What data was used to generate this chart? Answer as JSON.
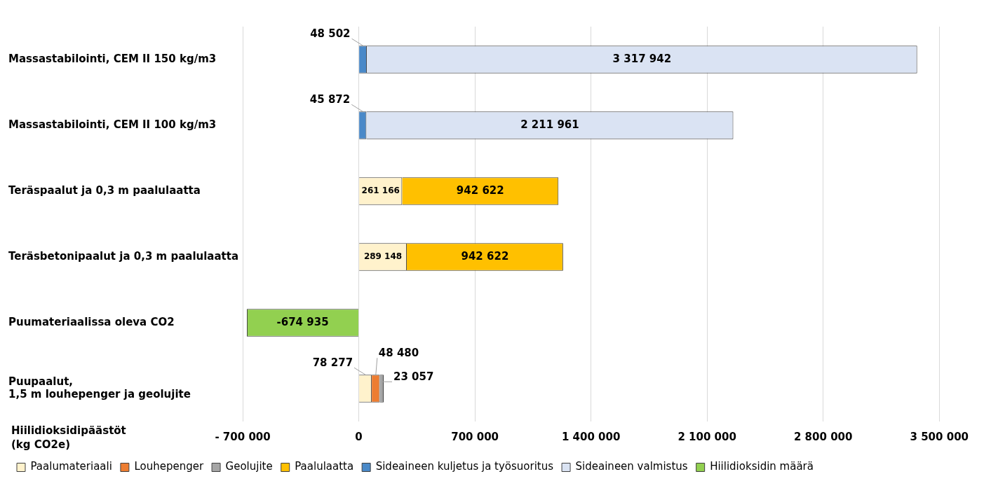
{
  "chart_data": {
    "type": "bar",
    "orientation": "horizontal",
    "stacked": true,
    "categories": [
      "Massastabilointi, CEM II 150 kg/m3",
      "Massastabilointi, CEM II 100 kg/m3",
      "Teräspaalut ja 0,3 m paalulaatta",
      "Teräsbetonipaalut ja 0,3 m paalulaatta",
      "Puumateriaalissa oleva CO2",
      "Puupaalut, 1,5 m louhepenger ja geolujite"
    ],
    "series": [
      {
        "name": "Paalumateriaali",
        "color": "#fff2cc",
        "values": [
          null,
          null,
          261166,
          289148,
          null,
          78277
        ]
      },
      {
        "name": "Louhepenger",
        "color": "#ed7d31",
        "values": [
          null,
          null,
          null,
          null,
          null,
          48480
        ]
      },
      {
        "name": "Geolujite",
        "color": "#a5a5a5",
        "values": [
          null,
          null,
          null,
          null,
          null,
          23057
        ]
      },
      {
        "name": "Paalulaatta",
        "color": "#ffc000",
        "values": [
          null,
          null,
          942622,
          942622,
          null,
          null
        ]
      },
      {
        "name": "Sideaineen kuljetus ja työsuoritus",
        "color": "#4a89c8",
        "values": [
          48502,
          45872,
          null,
          null,
          null,
          null
        ]
      },
      {
        "name": "Sideaineen valmistus",
        "color": "#dae3f3",
        "values": [
          3317942,
          2211961,
          null,
          null,
          null,
          null
        ]
      },
      {
        "name": "Hiilidioksidin määrä",
        "color": "#92d050",
        "values": [
          null,
          null,
          null,
          null,
          -674935,
          null
        ]
      }
    ],
    "xlabel": "Hiilidioksidipäästöt (kg CO2e)",
    "xlim": [
      -700000,
      3500000
    ],
    "xticks": [
      {
        "value": -700000,
        "label": "- 700 000"
      },
      0,
      {
        "value": 700000,
        "label": "700 000"
      },
      {
        "value": 1400000,
        "label": "1 400 000"
      },
      {
        "value": 2100000,
        "label": "2 100 000"
      },
      {
        "value": 2800000,
        "label": "2 800 000"
      },
      {
        "value": 3500000,
        "label": "3 500 000"
      }
    ],
    "grid": "x",
    "legend": "bottom",
    "data_labels": true
  }
}
